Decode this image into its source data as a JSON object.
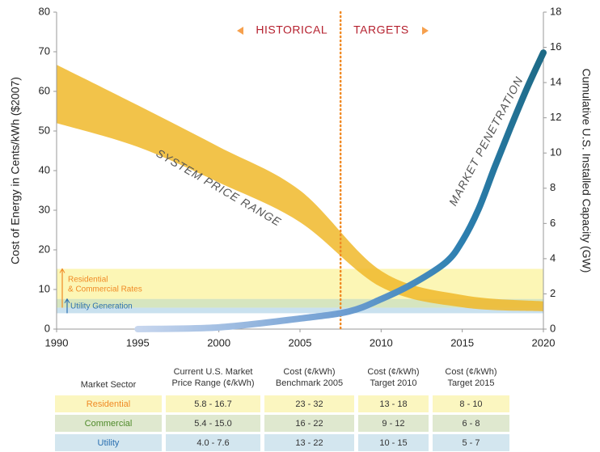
{
  "chart_data": {
    "type": "band-line",
    "xlim": [
      1990,
      2020
    ],
    "xticks": [
      1990,
      1995,
      2000,
      2005,
      2010,
      2015,
      2020
    ],
    "ylim": [
      0,
      80
    ],
    "yticks": [
      0,
      10,
      20,
      30,
      40,
      50,
      60,
      70,
      80
    ],
    "y2lim": [
      0,
      18
    ],
    "y2ticks": [
      0,
      2,
      4,
      6,
      8,
      10,
      12,
      14,
      16,
      18
    ],
    "ylabel": "Cost of Energy in Cents/kWh ($2007)",
    "y2label": "Cumulative U.S. Installed Capacity (GW)",
    "divider_x": 2007.5,
    "divider_color": "#f08a24",
    "annotations": {
      "historical": "HISTORICAL",
      "targets": "TARGETS",
      "band": "SYSTEM PRICE RANGE",
      "line": "MARKET PENETRATION"
    },
    "price_band": {
      "name": "SYSTEM PRICE RANGE",
      "color": "#f0b82a",
      "x": [
        1990,
        1995,
        2000,
        2005,
        2010,
        2015,
        2020
      ],
      "upper": [
        66.7,
        56.5,
        46,
        35,
        14.7,
        8.6,
        7
      ],
      "lower": [
        52,
        46,
        37,
        27,
        10.6,
        5.5,
        4.5
      ]
    },
    "series": [
      {
        "name": "MARKET PENETRATION",
        "color": "#1f6f8b",
        "axis": "y2",
        "x": [
          1995,
          2000,
          2005,
          2008,
          2010,
          2012,
          2014,
          2015,
          2016,
          2017,
          2018,
          2019,
          2020
        ],
        "values": [
          0,
          0.1,
          0.6,
          1.0,
          1.7,
          2.6,
          3.8,
          5,
          6.8,
          9.2,
          11.5,
          13.7,
          15.7
        ]
      }
    ],
    "rate_bands": [
      {
        "lower": 7.6,
        "upper": 15.2,
        "color": "#fbf4a8"
      },
      {
        "lower": 5.4,
        "upper": 7.6,
        "color": "#cfe0b4"
      },
      {
        "lower": 4.0,
        "upper": 5.4,
        "color": "#bfdcec"
      }
    ],
    "rate_labels": [
      {
        "lines": [
          "Residential",
          "& Commercial Rates"
        ],
        "color": "#f08a24",
        "from": 15.2,
        "to": 5.4
      },
      {
        "lines": [
          "Utility Generation"
        ],
        "color": "#2a6fb0",
        "from": 7.6,
        "to": 4.0
      }
    ]
  },
  "table": {
    "headers": [
      [
        "Market Sector"
      ],
      [
        "Current U.S. Market",
        "Price Range (¢/kWh)"
      ],
      [
        "Cost (¢/kWh)",
        "Benchmark 2005"
      ],
      [
        "Cost (¢/kWh)",
        "Target 2010"
      ],
      [
        "Cost (¢/kWh)",
        "Target 2015"
      ]
    ],
    "rows": [
      {
        "cells": [
          "Residential",
          "5.8 - 16.7",
          "23 - 32",
          "13 - 18",
          "8 - 10"
        ],
        "color": "#f08a24",
        "background": "#fbf6c0"
      },
      {
        "cells": [
          "Commercial",
          "5.4 - 15.0",
          "16 - 22",
          "9 - 12",
          "6 - 8"
        ],
        "color": "#4f8a2a",
        "background": "#dfe8cf"
      },
      {
        "cells": [
          "Utility",
          "4.0 - 7.6",
          "13 - 22",
          "10 - 15",
          "5 - 7"
        ],
        "color": "#2a6fb0",
        "background": "#d3e6ef"
      }
    ]
  }
}
